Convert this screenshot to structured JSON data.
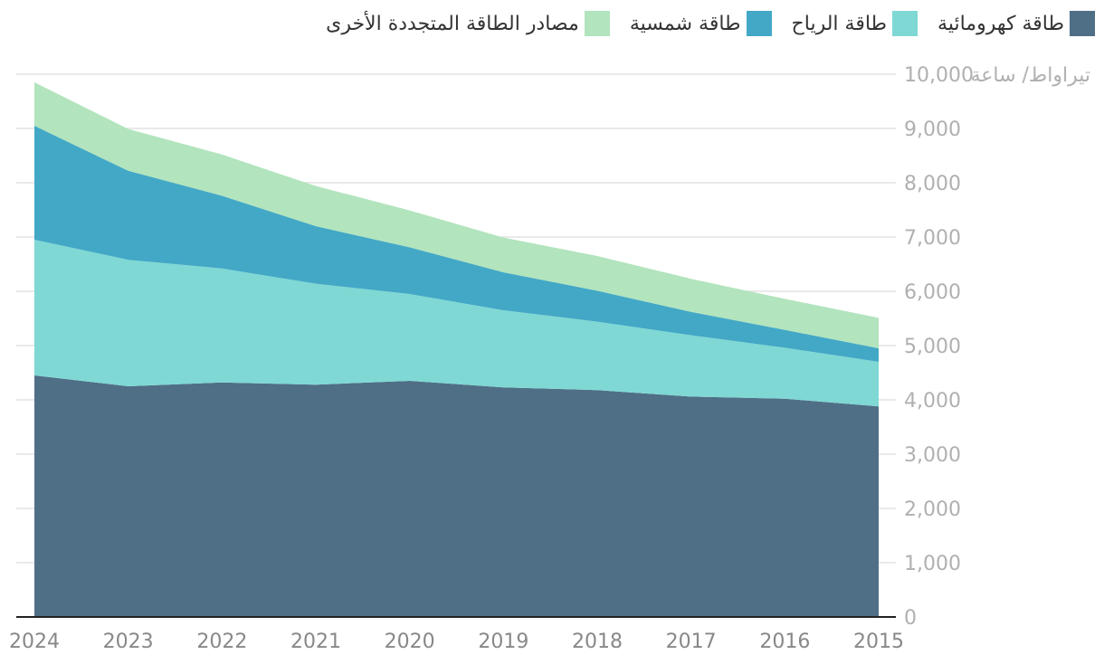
{
  "chart_data": {
    "type": "area",
    "stacked": true,
    "categories": [
      "2024",
      "2023",
      "2022",
      "2021",
      "2020",
      "2019",
      "2018",
      "2017",
      "2016",
      "2015"
    ],
    "series": [
      {
        "name": "طاقة كهرومائية",
        "color": "#4f6f86",
        "values": [
          4450,
          4250,
          4320,
          4280,
          4350,
          4230,
          4180,
          4060,
          4020,
          3880
        ]
      },
      {
        "name": "طاقة الرياح",
        "color": "#7fd8d4",
        "values": [
          2500,
          2330,
          2100,
          1860,
          1600,
          1420,
          1260,
          1130,
          940,
          820
        ]
      },
      {
        "name": "طاقة شمسية",
        "color": "#43a8c6",
        "values": [
          2100,
          1640,
          1340,
          1060,
          860,
          700,
          570,
          430,
          330,
          250
        ]
      },
      {
        "name": "مصادر الطاقة المتجددة الأخرى",
        "color": "#b2e4bd",
        "values": [
          800,
          770,
          760,
          740,
          680,
          640,
          640,
          610,
          570,
          560
        ]
      }
    ],
    "ylabel": "تيراواط/ ساعة",
    "ylim": [
      0,
      10000
    ],
    "yticks": [
      0,
      1000,
      2000,
      3000,
      4000,
      5000,
      6000,
      7000,
      8000,
      9000,
      10000
    ],
    "ytick_labels": [
      "0",
      "1,000",
      "2,000",
      "3,000",
      "4,000",
      "5,000",
      "6,000",
      "7,000",
      "8,000",
      "9,000",
      "10,000"
    ],
    "grid": true,
    "legend_position": "top"
  }
}
